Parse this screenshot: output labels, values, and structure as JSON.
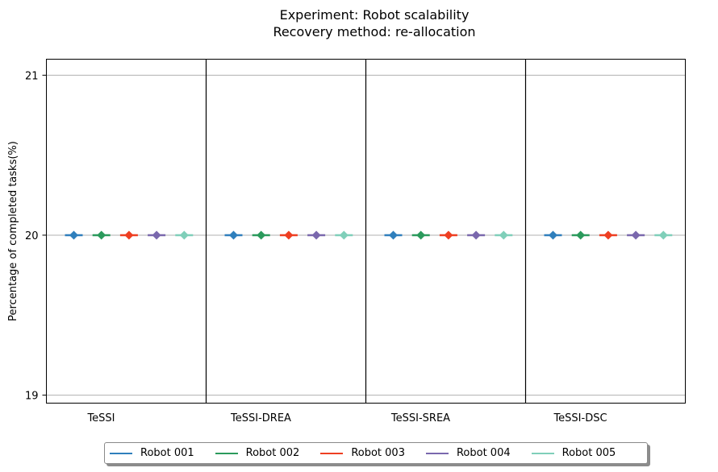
{
  "chart_data": {
    "type": "scatter",
    "title": "Experiment: Robot scalability",
    "subtitle": "Recovery method: re-allocation",
    "ylabel": "Percentage of completed tasks(%)",
    "xlabel": "",
    "ylim": [
      18.95,
      21.1
    ],
    "yticks": [
      19,
      20,
      21
    ],
    "grid": "y",
    "legend_position": "bottom-center",
    "categories": [
      "TeSSI",
      "TeSSI-DREA",
      "TeSSI-SREA",
      "TeSSI-DSC"
    ],
    "series": [
      {
        "name": "Robot 001",
        "color": "#2f7fbc",
        "values": [
          20,
          20,
          20,
          20
        ]
      },
      {
        "name": "Robot 002",
        "color": "#2b9a5c",
        "values": [
          20,
          20,
          20,
          20
        ]
      },
      {
        "name": "Robot 003",
        "color": "#ee3f22",
        "values": [
          20,
          20,
          20,
          20
        ]
      },
      {
        "name": "Robot 004",
        "color": "#7a68ad",
        "values": [
          20,
          20,
          20,
          20
        ]
      },
      {
        "name": "Robot 005",
        "color": "#7fcfb9",
        "values": [
          20,
          20,
          20,
          20
        ]
      }
    ]
  }
}
